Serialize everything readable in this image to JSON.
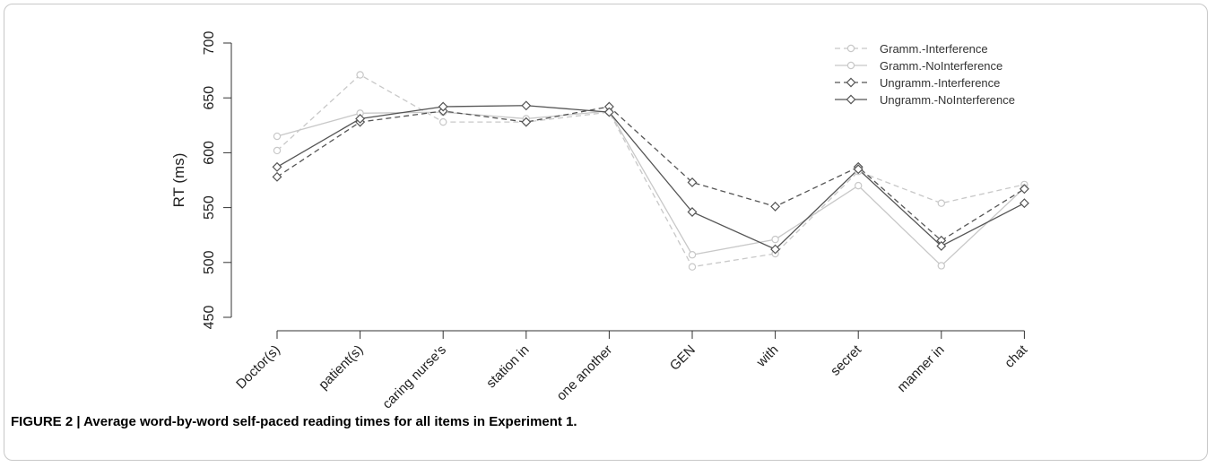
{
  "caption": {
    "label": "FIGURE 2 | ",
    "text": "Average word-by-word self-paced reading times for all items in Experiment 1."
  },
  "chart_data": {
    "type": "line",
    "title": "",
    "xlabel": "",
    "ylabel": "RT (ms)",
    "ylim": [
      450,
      700
    ],
    "yticks": [
      450,
      500,
      550,
      600,
      650,
      700
    ],
    "grid": false,
    "legend_position": "top-right",
    "categories": [
      "Doctor(s)",
      "patient(s)",
      "caring nurse's",
      "station in",
      "one another",
      "GEN",
      "with",
      "secret",
      "manner in",
      "chat"
    ],
    "series": [
      {
        "name": "Gramm.-Interference",
        "values": [
          602,
          671,
          628,
          628,
          637,
          496,
          508,
          583,
          554,
          571
        ],
        "color": "#c8c8c8",
        "dash": "dashed",
        "marker": "circle"
      },
      {
        "name": "Gramm.-NoInterference",
        "values": [
          615,
          636,
          637,
          631,
          638,
          507,
          521,
          570,
          497,
          568
        ],
        "color": "#c8c8c8",
        "dash": "solid",
        "marker": "circle"
      },
      {
        "name": "Ungramm.-Interference",
        "values": [
          578,
          628,
          638,
          628,
          642,
          573,
          551,
          587,
          520,
          567
        ],
        "color": "#555555",
        "dash": "dashed",
        "marker": "diamond"
      },
      {
        "name": "Ungramm.-NoInterference",
        "values": [
          587,
          631,
          642,
          643,
          637,
          546,
          512,
          585,
          515,
          554
        ],
        "color": "#555555",
        "dash": "solid",
        "marker": "diamond"
      }
    ]
  }
}
